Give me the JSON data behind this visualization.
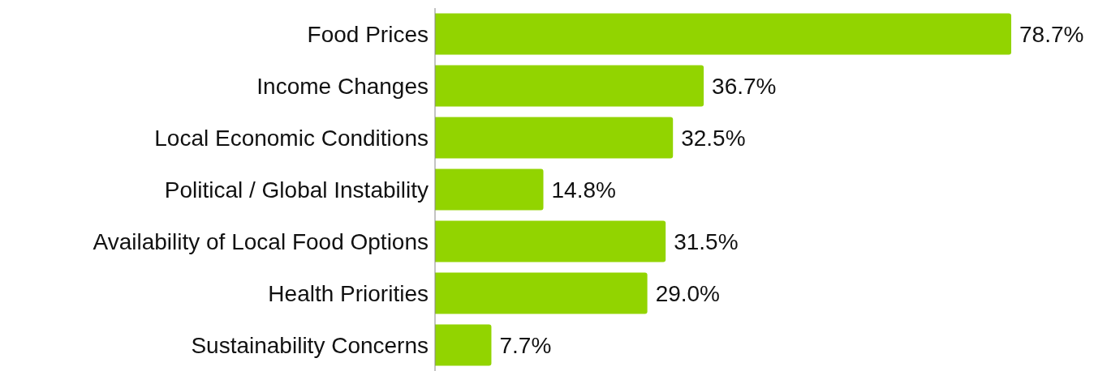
{
  "chart_data": {
    "type": "bar",
    "orientation": "horizontal",
    "categories": [
      "Food Prices",
      "Income Changes",
      "Local Economic Conditions",
      "Political / Global Instability",
      "Availability of Local Food Options",
      "Health Priorities",
      "Sustainability Concerns"
    ],
    "values": [
      78.7,
      36.7,
      32.5,
      14.8,
      31.5,
      29.0,
      7.7
    ],
    "value_labels": [
      "78.7%",
      "36.7%",
      "32.5%",
      "14.8%",
      "31.5%",
      "29.0%",
      "7.7%"
    ],
    "color": "#92d400",
    "grid": false,
    "legend": false
  }
}
